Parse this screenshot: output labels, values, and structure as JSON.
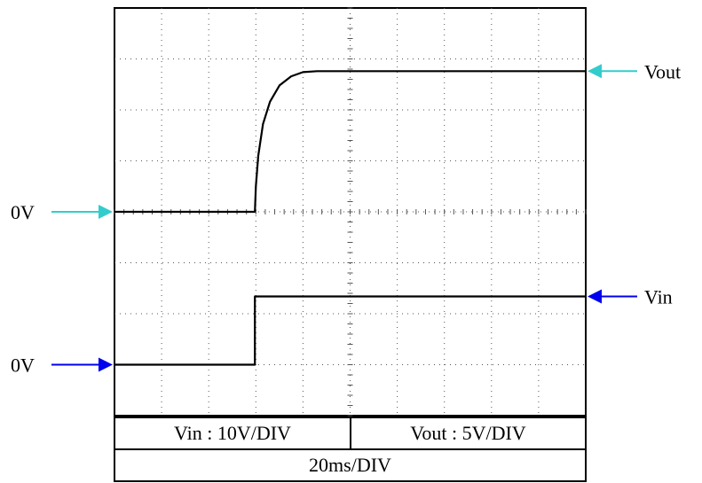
{
  "chart_data": {
    "type": "line",
    "title": "",
    "xlabel": "",
    "ylabel": "",
    "grid": true,
    "divisions": {
      "x": 10,
      "y": 8
    },
    "time_per_div_ms": 20,
    "x_div_range": [
      0,
      10
    ],
    "y_div_range": [
      0,
      8
    ],
    "series": [
      {
        "name": "Vin",
        "scale_v_per_div": 10,
        "zero_level_div": 1,
        "x_div": [
          0,
          2.98,
          2.98,
          10
        ],
        "y_volts": [
          0,
          0,
          13.4,
          13.4
        ],
        "color": "#000000"
      },
      {
        "name": "Vout",
        "scale_v_per_div": 5,
        "zero_level_div": 4,
        "x_div": [
          0,
          2.98,
          3.0,
          3.05,
          3.15,
          3.3,
          3.5,
          3.75,
          4.0,
          4.3,
          10
        ],
        "y_volts": [
          0,
          0,
          2.5,
          5.5,
          8.6,
          10.8,
          12.4,
          13.3,
          13.7,
          13.8,
          13.8
        ],
        "color": "#000000"
      }
    ]
  },
  "markers": [
    {
      "label": "Vout",
      "side": "right",
      "color": "#33cccc",
      "series": "Vout"
    },
    {
      "label": "0V",
      "side": "left",
      "color": "#33cccc",
      "series": "Vout"
    },
    {
      "label": "Vin",
      "side": "right",
      "color": "#0000ee",
      "series": "Vin"
    },
    {
      "label": "0V",
      "side": "left",
      "color": "#0000ee",
      "series": "Vin"
    }
  ],
  "info_table": {
    "vin_scale": "Vin : 10V/DIV",
    "vout_scale": "Vout : 5V/DIV",
    "time_scale": "20ms/DIV"
  }
}
